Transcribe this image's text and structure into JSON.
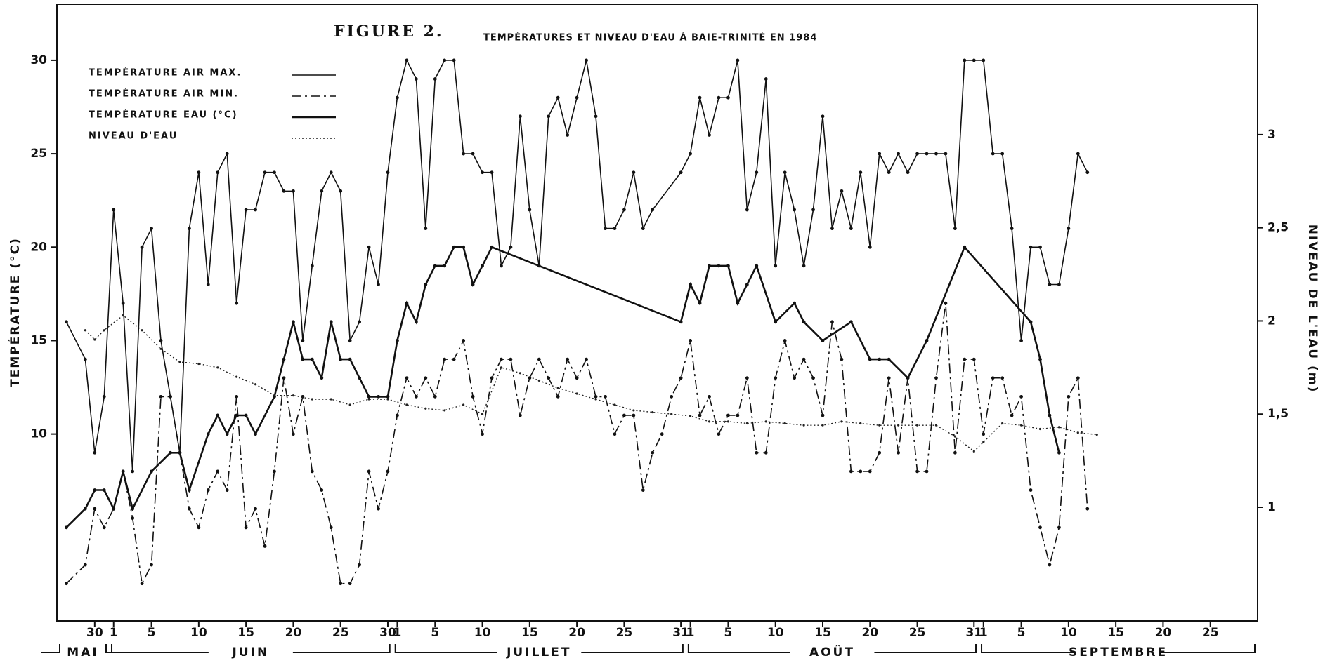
{
  "chart_data": {
    "type": "line",
    "figure": "FIGURE  2.",
    "title": "TEMPÉRATURES ET NIVEAU D'EAU À BAIE-TRINITÉ EN 1984",
    "ylabel": "TEMPÉRATURE (°C)",
    "y2label": "NIVEAU DE L'EAU (m)",
    "xlim": [
      26,
      153
    ],
    "xticks": [
      {
        "value": 30,
        "label": "30"
      },
      {
        "value": 32,
        "label": "1"
      },
      {
        "value": 36,
        "label": "5"
      },
      {
        "value": 41,
        "label": "10"
      },
      {
        "value": 46,
        "label": "15"
      },
      {
        "value": 51,
        "label": "20"
      },
      {
        "value": 56,
        "label": "25"
      },
      {
        "value": 61,
        "label": "30"
      },
      {
        "value": 62,
        "label": "1"
      },
      {
        "value": 66,
        "label": "5"
      },
      {
        "value": 71,
        "label": "10"
      },
      {
        "value": 76,
        "label": "15"
      },
      {
        "value": 81,
        "label": "20"
      },
      {
        "value": 86,
        "label": "25"
      },
      {
        "value": 92,
        "label": "31"
      },
      {
        "value": 93,
        "label": "1"
      },
      {
        "value": 97,
        "label": "5"
      },
      {
        "value": 102,
        "label": "10"
      },
      {
        "value": 107,
        "label": "15"
      },
      {
        "value": 112,
        "label": "20"
      },
      {
        "value": 117,
        "label": "25"
      },
      {
        "value": 123,
        "label": "31"
      },
      {
        "value": 124,
        "label": "1"
      },
      {
        "value": 128,
        "label": "5"
      },
      {
        "value": 133,
        "label": "10"
      },
      {
        "value": 138,
        "label": "15"
      },
      {
        "value": 143,
        "label": "20"
      },
      {
        "value": 148,
        "label": "25"
      }
    ],
    "months": [
      "MAI",
      "JUIN",
      "JUILLET",
      "AOÛT",
      "SEPTEMBRE"
    ],
    "ylim": [
      0,
      33
    ],
    "yticks": [
      10,
      15,
      20,
      25,
      30
    ],
    "y2lim": [
      0.39,
      3.7
    ],
    "y2ticks": [
      1,
      {
        "value": 1.5,
        "label": "1,5"
      },
      2,
      {
        "value": 2.5,
        "label": "2,5"
      },
      3
    ],
    "legend": "upper left",
    "series": [
      {
        "name": "TEMPÉRATURE AIR MAX.",
        "color": "#111",
        "style": "solid",
        "width": 1.6,
        "x": [
          27,
          29,
          30,
          31,
          32,
          33,
          34,
          35,
          36,
          37,
          38,
          39,
          40,
          41,
          42,
          43,
          44,
          45,
          46,
          47,
          48,
          49,
          50,
          51,
          52,
          53,
          54,
          55,
          56,
          57,
          58,
          59,
          60,
          61,
          62,
          63,
          64,
          65,
          66,
          67,
          68,
          69,
          70,
          71,
          72,
          73,
          74,
          75,
          76,
          77,
          78,
          79,
          80,
          81,
          82,
          83,
          84,
          85,
          86,
          87,
          88,
          89,
          92,
          93,
          94,
          95,
          96,
          97,
          98,
          99,
          100,
          101,
          102,
          103,
          104,
          105,
          106,
          107,
          108,
          109,
          110,
          111,
          112,
          113,
          114,
          115,
          116,
          117,
          118,
          119,
          120,
          121,
          122,
          123,
          124,
          125,
          126,
          127,
          128,
          129,
          130,
          131,
          132,
          133,
          134,
          135
        ],
        "values": [
          16,
          14,
          9,
          12,
          22,
          17,
          8,
          20,
          21,
          15,
          12,
          9,
          21,
          24,
          18,
          24,
          25,
          17,
          22,
          22,
          24,
          24,
          23,
          23,
          15,
          19,
          23,
          24,
          23,
          15,
          16,
          20,
          18,
          24,
          28,
          30,
          29,
          21,
          29,
          30,
          30,
          25,
          25,
          24,
          24,
          19,
          20,
          27,
          22,
          19,
          27,
          28,
          26,
          28,
          30,
          27,
          21,
          21,
          22,
          24,
          21,
          22,
          24,
          25,
          28,
          26,
          28,
          28,
          30,
          22,
          24,
          29,
          19,
          24,
          22,
          19,
          22,
          27,
          21,
          23,
          21,
          24,
          20,
          25,
          24,
          25,
          24,
          25,
          25,
          25,
          25,
          21,
          30,
          30,
          30,
          25,
          25,
          21,
          15,
          20,
          20,
          18,
          18,
          21,
          25,
          24
        ]
      },
      {
        "name": "TEMPÉRATURE AIR MIN.",
        "color": "#111",
        "style": "dashdot",
        "width": 1.6,
        "x": [
          27,
          29,
          30,
          31,
          32,
          33,
          34,
          35,
          36,
          37,
          38,
          39,
          40,
          41,
          42,
          43,
          44,
          45,
          46,
          47,
          48,
          49,
          50,
          51,
          52,
          53,
          54,
          55,
          56,
          57,
          58,
          59,
          60,
          61,
          62,
          63,
          64,
          65,
          66,
          67,
          68,
          69,
          70,
          71,
          72,
          73,
          74,
          75,
          76,
          77,
          78,
          79,
          80,
          81,
          82,
          83,
          84,
          85,
          86,
          87,
          88,
          89,
          90,
          91,
          92,
          93,
          94,
          95,
          96,
          97,
          98,
          99,
          100,
          101,
          102,
          103,
          104,
          105,
          106,
          107,
          108,
          109,
          110,
          111,
          112,
          113,
          114,
          115,
          116,
          117,
          118,
          119,
          120,
          121,
          122,
          123,
          124,
          125,
          126,
          127,
          128,
          129,
          130,
          131,
          132,
          133,
          134,
          135
        ],
        "values": [
          2,
          3,
          6,
          5,
          6,
          8,
          5.5,
          2,
          3,
          12,
          12,
          9,
          6,
          5,
          7,
          8,
          7,
          12,
          5,
          6,
          4,
          8,
          13,
          10,
          12,
          8,
          7,
          5,
          2,
          2,
          3,
          8,
          6,
          8,
          11,
          13,
          12,
          13,
          12,
          14,
          14,
          15,
          12,
          10,
          13,
          14,
          14,
          11,
          13,
          14,
          13,
          12,
          14,
          13,
          14,
          12,
          12,
          10,
          11,
          11,
          7,
          9,
          10,
          12,
          13,
          15,
          11,
          12,
          10,
          11,
          11,
          13,
          9,
          9,
          13,
          15,
          13,
          14,
          13,
          11,
          16,
          14,
          8,
          8,
          8,
          9,
          13,
          9,
          13,
          8,
          8,
          13,
          17,
          9,
          14,
          14,
          10,
          13,
          13,
          11,
          12,
          7,
          5,
          3,
          5,
          12,
          13,
          6
        ]
      },
      {
        "name": "TEMPÉRATURE EAU (°C)",
        "color": "#111",
        "style": "thick",
        "width": 2.6,
        "x": [
          27,
          29,
          30,
          31,
          32,
          33,
          34,
          36,
          38,
          39,
          40,
          42,
          43,
          44,
          45,
          46,
          47,
          49,
          50,
          51,
          52,
          53,
          54,
          55,
          56,
          57,
          58,
          59,
          60,
          61,
          62,
          63,
          64,
          65,
          66,
          67,
          68,
          69,
          70,
          71,
          72,
          92,
          93,
          94,
          95,
          96,
          97,
          98,
          99,
          100,
          102,
          104,
          105,
          107,
          110,
          112,
          113,
          114,
          116,
          118,
          122,
          129,
          130,
          131,
          132
        ],
        "values": [
          5,
          6,
          7,
          7,
          6,
          8,
          6,
          8,
          9,
          9,
          7,
          10,
          11,
          10,
          11,
          11,
          10,
          12,
          14,
          16,
          14,
          14,
          13,
          16,
          14,
          14,
          13,
          12,
          12,
          12,
          15,
          17,
          16,
          18,
          19,
          19,
          20,
          20,
          18,
          19,
          20,
          16,
          18,
          17,
          19,
          19,
          19,
          17,
          18,
          19,
          16,
          17,
          16,
          15,
          16,
          14,
          14,
          14,
          13,
          15,
          20,
          16,
          14,
          11,
          9
        ]
      },
      {
        "name": "NIVEAU D'EAU",
        "color": "#222",
        "style": "dotted",
        "width": 1.4,
        "axis": "y2",
        "x": [
          29,
          30,
          31,
          33,
          35,
          37,
          39,
          41,
          43,
          45,
          47,
          49,
          51,
          53,
          55,
          57,
          59,
          61,
          63,
          65,
          67,
          69,
          71,
          73,
          75,
          77,
          79,
          81,
          83,
          85,
          87,
          89,
          91,
          93,
          95,
          97,
          99,
          101,
          103,
          105,
          107,
          109,
          111,
          113,
          115,
          117,
          119,
          121,
          123,
          124,
          126,
          128,
          130,
          132,
          134,
          136
        ],
        "values": [
          1.95,
          1.9,
          1.95,
          2.03,
          1.95,
          1.85,
          1.78,
          1.77,
          1.75,
          1.7,
          1.66,
          1.6,
          1.6,
          1.58,
          1.58,
          1.55,
          1.58,
          1.58,
          1.55,
          1.53,
          1.52,
          1.55,
          1.5,
          1.75,
          1.72,
          1.68,
          1.64,
          1.61,
          1.58,
          1.55,
          1.52,
          1.51,
          1.5,
          1.49,
          1.46,
          1.46,
          1.45,
          1.46,
          1.45,
          1.44,
          1.44,
          1.46,
          1.45,
          1.44,
          1.44,
          1.44,
          1.44,
          1.38,
          1.3,
          1.35,
          1.45,
          1.44,
          1.42,
          1.43,
          1.4,
          1.39
        ]
      }
    ]
  }
}
